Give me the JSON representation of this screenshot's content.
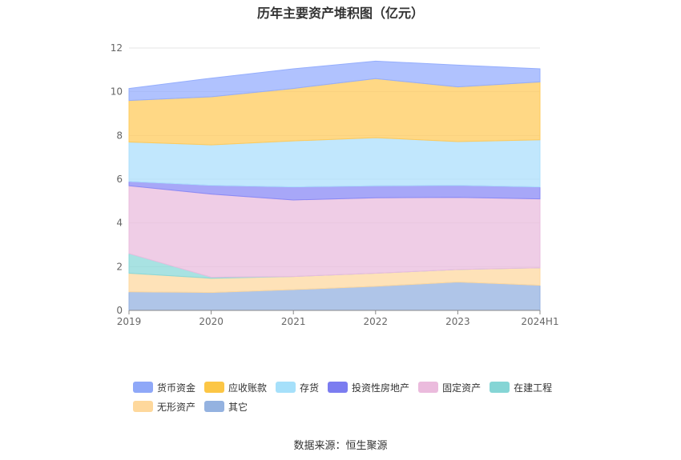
{
  "title": "历年主要资产堆积图（亿元）",
  "source": "数据来源：恒生聚源",
  "chart_data": {
    "type": "area",
    "stacked": true,
    "title": "历年主要资产堆积图（亿元）",
    "categories": [
      "2019",
      "2020",
      "2021",
      "2022",
      "2023",
      "2024H1"
    ],
    "ylim": [
      0,
      12
    ],
    "yticks": [
      0,
      2,
      4,
      6,
      8,
      10,
      12
    ],
    "grid": true,
    "legend_position": "bottom",
    "series": [
      {
        "name": "其它",
        "color": "#94b2e0",
        "values": [
          0.85,
          0.82,
          0.95,
          1.1,
          1.3,
          1.15
        ]
      },
      {
        "name": "无形资产",
        "color": "#fdd8a0",
        "values": [
          0.85,
          0.65,
          0.6,
          0.6,
          0.57,
          0.8
        ]
      },
      {
        "name": "在建工程",
        "color": "#8bd8d8",
        "values": [
          0.9,
          0.05,
          0.0,
          0.0,
          0.0,
          0.0
        ]
      },
      {
        "name": "固定资产",
        "color": "#eabcde",
        "values": [
          3.1,
          3.8,
          3.5,
          3.45,
          3.3,
          3.15
        ]
      },
      {
        "name": "投资性房地产",
        "color": "#8a8af5",
        "values": [
          0.2,
          0.4,
          0.6,
          0.55,
          0.55,
          0.55
        ]
      },
      {
        "name": "存货",
        "color": "#acdffc",
        "values": [
          1.8,
          1.85,
          2.1,
          2.2,
          2.0,
          2.15
        ]
      },
      {
        "name": "应收账款",
        "color": "#ffcb5c",
        "values": [
          1.9,
          2.2,
          2.4,
          2.7,
          2.5,
          2.65
        ]
      },
      {
        "name": "货币资金",
        "color": "#95aefd",
        "values": [
          0.55,
          0.85,
          0.9,
          0.8,
          1.0,
          0.6
        ]
      }
    ]
  },
  "legend_rows": [
    [
      {
        "label": "货币资金",
        "color": "#8fa8f8"
      },
      {
        "label": "应收账款",
        "color": "#fcc645"
      },
      {
        "label": "存货",
        "color": "#a6e0fa"
      },
      {
        "label": "投资性房地产",
        "color": "#7b7cf0"
      },
      {
        "label": "固定资产",
        "color": "#ebbbdd"
      },
      {
        "label": "在建工程",
        "color": "#85d5d5"
      }
    ],
    [
      {
        "label": "无形资产",
        "color": "#fed89c"
      },
      {
        "label": "其它",
        "color": "#94b2e0"
      }
    ]
  ]
}
